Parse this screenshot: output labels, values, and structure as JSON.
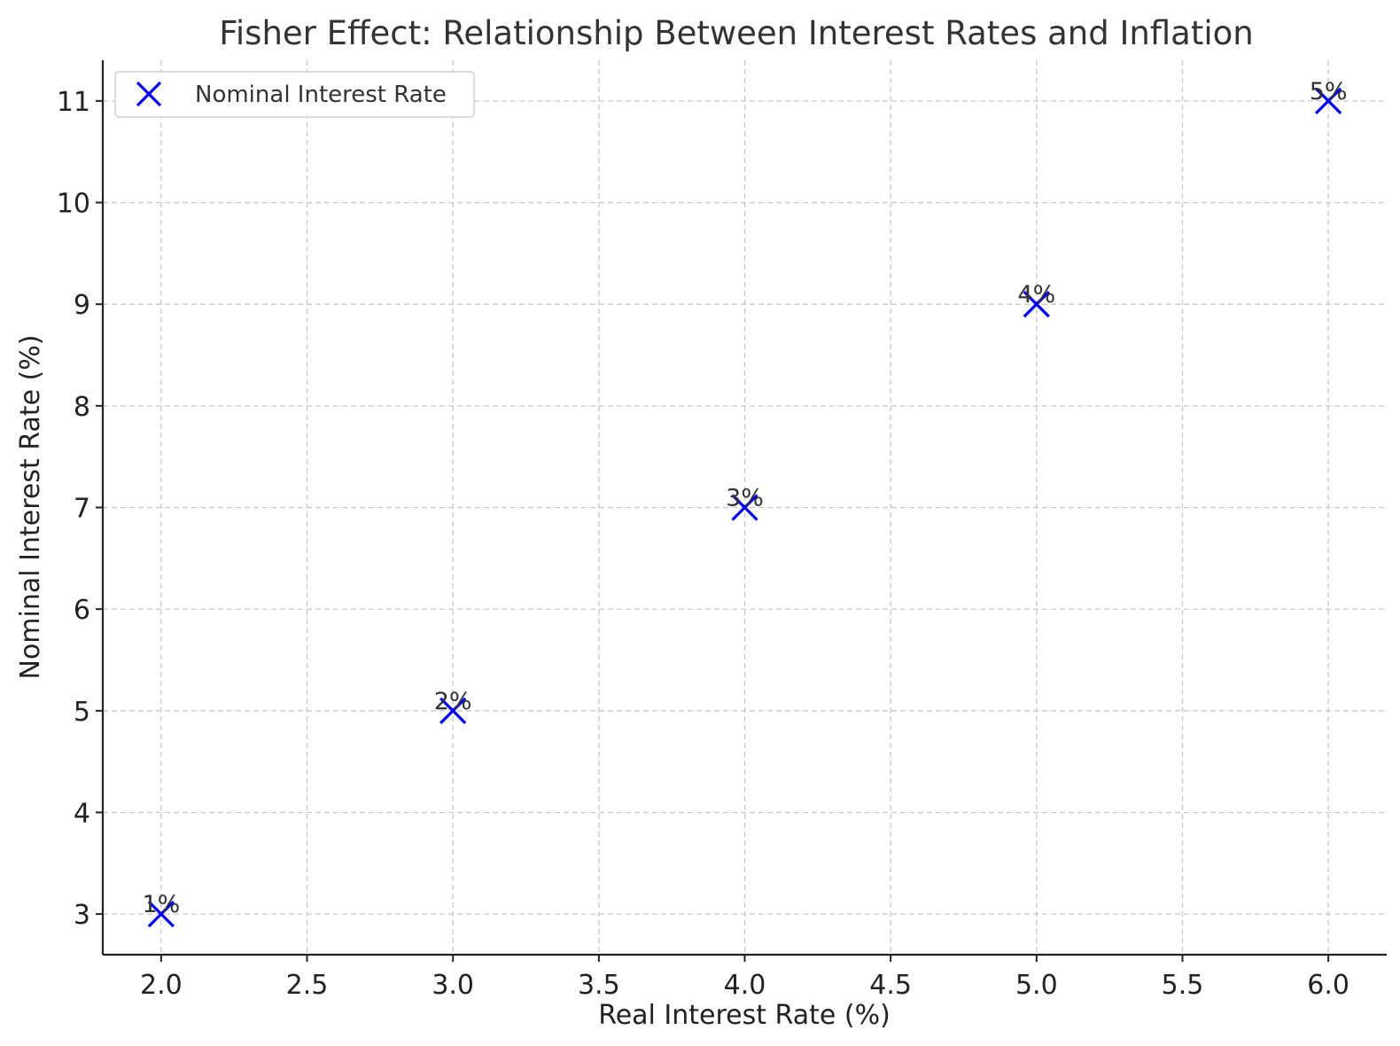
{
  "chart_data": {
    "type": "scatter",
    "title": "Fisher Effect: Relationship Between Interest Rates and Inflation",
    "xlabel": "Real Interest Rate (%)",
    "ylabel": "Nominal Interest Rate (%)",
    "xlim": [
      1.8,
      6.2
    ],
    "ylim": [
      2.6,
      11.4
    ],
    "x_ticks": [
      2.0,
      2.5,
      3.0,
      3.5,
      4.0,
      4.5,
      5.0,
      5.5,
      6.0
    ],
    "x_tick_labels": [
      "2.0",
      "2.5",
      "3.0",
      "3.5",
      "4.0",
      "4.5",
      "5.0",
      "5.5",
      "6.0"
    ],
    "y_ticks": [
      3,
      4,
      5,
      6,
      7,
      8,
      9,
      10,
      11
    ],
    "y_tick_labels": [
      "3",
      "4",
      "5",
      "6",
      "7",
      "8",
      "9",
      "10",
      "11"
    ],
    "grid": true,
    "legend_position": "top-left",
    "series": [
      {
        "name": "Nominal Interest Rate",
        "marker": "x",
        "color": "#0000ee",
        "x": [
          2,
          3,
          4,
          5,
          6
        ],
        "y": [
          3,
          5,
          7,
          9,
          11
        ],
        "point_labels": [
          "1%",
          "2%",
          "3%",
          "4%",
          "5%"
        ]
      }
    ]
  }
}
